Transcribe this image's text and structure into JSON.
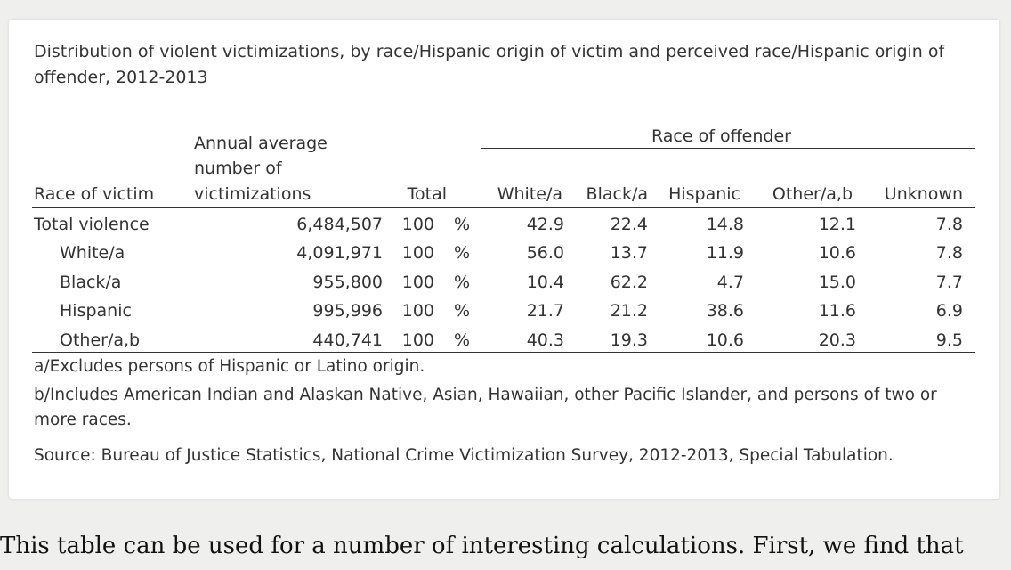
{
  "table": {
    "title": "Distribution of violent victimizations, by race/Hispanic origin of victim and perceived race/Hispanic origin of offender, 2012-2013",
    "spanner": "Race of offender",
    "headers": {
      "victim": "Race of victim",
      "annual_line1": "Annual average",
      "annual_line2": "number of",
      "annual_line3": "victimizations",
      "total": "Total",
      "white": "White/a",
      "black": "Black/a",
      "hispanic": "Hispanic",
      "other": "Other/a,b",
      "unknown": "Unknown"
    },
    "rows": [
      {
        "label": "Total violence",
        "number": "6,484,507",
        "total": "100",
        "pct": "%",
        "white": "42.9",
        "black": "22.4",
        "hispanic": "14.8",
        "other": "12.1",
        "unknown": "7.8"
      },
      {
        "label": "White/a",
        "number": "4,091,971",
        "total": "100",
        "pct": "%",
        "white": "56.0",
        "black": "13.7",
        "hispanic": "11.9",
        "other": "10.6",
        "unknown": "7.8"
      },
      {
        "label": "Black/a",
        "number": "955,800",
        "total": "100",
        "pct": "%",
        "white": "10.4",
        "black": "62.2",
        "hispanic": "4.7",
        "other": "15.0",
        "unknown": "7.7"
      },
      {
        "label": "Hispanic",
        "number": "995,996",
        "total": "100",
        "pct": "%",
        "white": "21.7",
        "black": "21.2",
        "hispanic": "38.6",
        "other": "11.6",
        "unknown": "6.9"
      },
      {
        "label": "Other/a,b",
        "number": "440,741",
        "total": "100",
        "pct": "%",
        "white": "40.3",
        "black": "19.3",
        "hispanic": "10.6",
        "other": "20.3",
        "unknown": "9.5"
      }
    ],
    "notes": {
      "a": "a/Excludes persons of Hispanic or Latino origin.",
      "b": "b/Includes American Indian and Alaskan Native, Asian, Hawaiian, other Pacific Islander, and persons of two or more races.",
      "source": "Source: Bureau of Justice Statistics, National Crime Victimization Survey, 2012-2013, Special Tabulation."
    }
  },
  "body_text": "This table can be used for a number of interesting calculations. First, we find that"
}
